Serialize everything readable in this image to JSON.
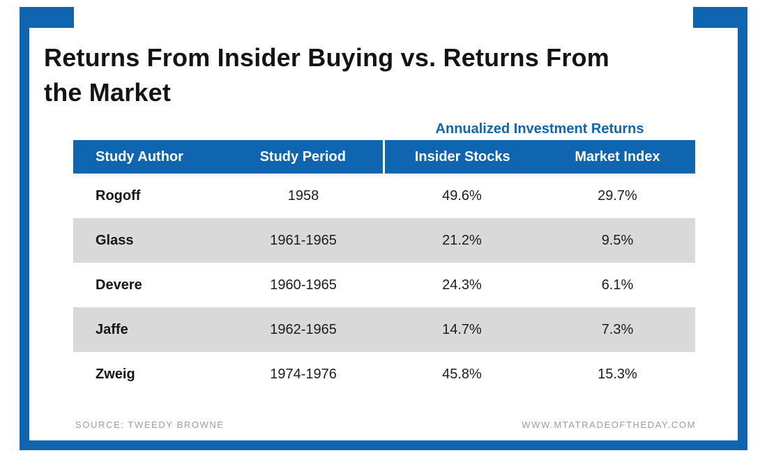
{
  "chart_data": {
    "type": "table",
    "title": "Returns From Insider Buying vs. Returns From the Market",
    "group_header": "Annualized Investment Returns",
    "columns": [
      "Study Author",
      "Study Period",
      "Insider Stocks",
      "Market Index"
    ],
    "rows": [
      {
        "author": "Rogoff",
        "period": "1958",
        "insider_stocks": "49.6%",
        "market_index": "29.7%"
      },
      {
        "author": "Glass",
        "period": "1961-1965",
        "insider_stocks": "21.2%",
        "market_index": "9.5%"
      },
      {
        "author": "Devere",
        "period": "1960-1965",
        "insider_stocks": "24.3%",
        "market_index": "6.1%"
      },
      {
        "author": "Jaffe",
        "period": "1962-1965",
        "insider_stocks": "14.7%",
        "market_index": "7.3%"
      },
      {
        "author": "Zweig",
        "period": "1974-1976",
        "insider_stocks": "45.8%",
        "market_index": "15.3%"
      }
    ],
    "source": "SOURCE: TWEEDY BROWNE",
    "website": "WWW.MTATRADEOFTHEDAY.COM"
  },
  "colors": {
    "accent": "#0f65b0",
    "row_alt": "#d9d9d9",
    "title_text": "#141414",
    "footer_text": "#9c9c9c"
  }
}
